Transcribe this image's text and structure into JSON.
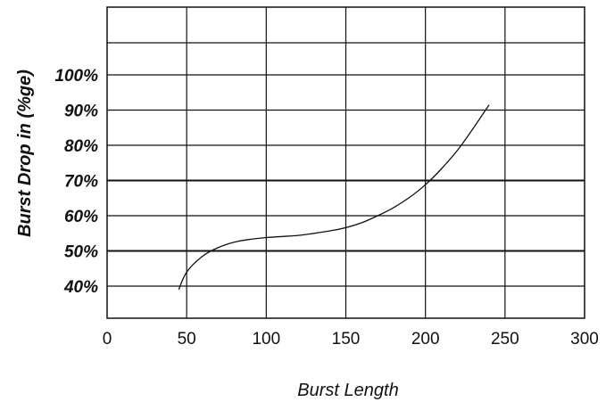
{
  "chart_data": {
    "type": "line",
    "title": "",
    "xlabel": "Burst Length",
    "ylabel": "Burst Drop in (%ge)",
    "xlim": [
      0,
      300
    ],
    "x_ticks": [
      "0",
      "50",
      "100",
      "150",
      "200",
      "250",
      "300"
    ],
    "y_ticks": [
      "40%",
      "50%",
      "60%",
      "70%",
      "80%",
      "90%",
      "100%"
    ],
    "grid": true,
    "series": [
      {
        "x": [
          45,
          50,
          60,
          70,
          80,
          90,
          100,
          110,
          120,
          130,
          140,
          150,
          160,
          170,
          180,
          190,
          200,
          210,
          220,
          230,
          240
        ],
        "y": [
          39,
          44,
          48.5,
          51,
          52.5,
          53.3,
          53.8,
          54.1,
          54.4,
          55,
          55.7,
          56.6,
          58,
          60,
          62.3,
          65.2,
          68.8,
          73.3,
          78.5,
          84.8,
          91.5
        ]
      }
    ]
  }
}
